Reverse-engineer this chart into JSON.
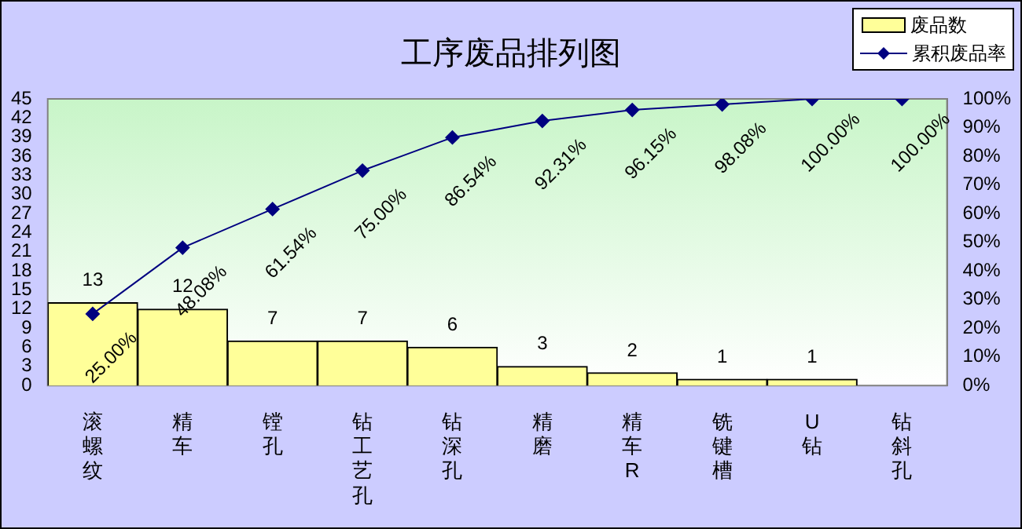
{
  "chart_data": {
    "type": "bar",
    "title": "工序废品排列图",
    "categories": [
      "滚螺纹",
      "精车",
      "镗孔",
      "钻工艺孔",
      "钻深孔",
      "精磨",
      "精车R",
      "铣键槽",
      "U钻",
      "钻斜孔"
    ],
    "series": [
      {
        "name": "废品数",
        "color": "#ffff99",
        "values": [
          13,
          12,
          7,
          7,
          6,
          3,
          2,
          1,
          1,
          0
        ],
        "value_labels": [
          "13",
          "12",
          "7",
          "7",
          "6",
          "3",
          "2",
          "1",
          "1",
          null
        ]
      },
      {
        "name": "累积废品率",
        "type": "line",
        "axis": "y2",
        "color": "#000080",
        "marker": "diamond",
        "values": [
          25.0,
          48.08,
          61.54,
          75.0,
          86.54,
          92.31,
          96.15,
          98.08,
          100.0,
          100.0
        ],
        "value_labels": [
          "25.00%",
          "48.08%",
          "61.54%",
          "75.00%",
          "86.54%",
          "92.31%",
          "96.15%",
          "98.08%",
          "100.00%",
          "100.00%"
        ]
      }
    ],
    "ylim": [
      0,
      45
    ],
    "yticks": [
      0,
      3,
      6,
      9,
      12,
      15,
      18,
      21,
      24,
      27,
      30,
      33,
      36,
      39,
      42,
      45
    ],
    "y2lim": [
      0,
      100
    ],
    "y2ticks": [
      {
        "value": 0,
        "label": "0%"
      },
      {
        "value": 10,
        "label": "10%"
      },
      {
        "value": 20,
        "label": "20%"
      },
      {
        "value": 30,
        "label": "30%"
      },
      {
        "value": 40,
        "label": "40%"
      },
      {
        "value": 50,
        "label": "50%"
      },
      {
        "value": 60,
        "label": "60%"
      },
      {
        "value": 70,
        "label": "70%"
      },
      {
        "value": 80,
        "label": "80%"
      },
      {
        "value": 90,
        "label": "90%"
      },
      {
        "value": 100,
        "label": "100%"
      }
    ],
    "grid": false,
    "legend": "top right"
  }
}
